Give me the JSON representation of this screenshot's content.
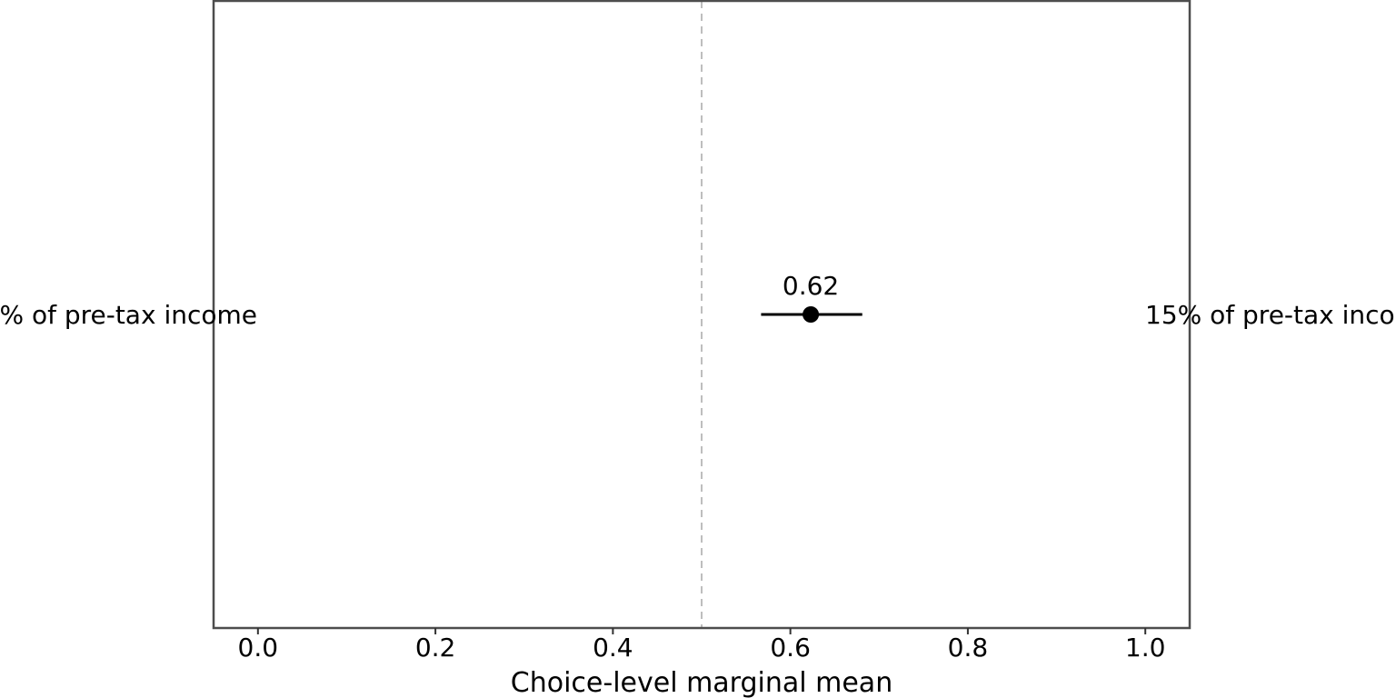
{
  "chart_data": {
    "type": "scatter",
    "xlabel": "Choice-level marginal mean",
    "ylabel": "",
    "xlim": [
      -0.05,
      1.05
    ],
    "xticks": [
      0.0,
      0.2,
      0.4,
      0.6,
      0.8,
      1.0
    ],
    "xtick_labels": [
      "0.0",
      "0.2",
      "0.4",
      "0.6",
      "0.8",
      "1.0"
    ],
    "reference_line": 0.5,
    "left_label": "% of pre-tax income",
    "right_label": "15% of pre-tax inco",
    "points": [
      {
        "estimate": 0.623,
        "lower": 0.567,
        "upper": 0.681,
        "label": "0.62"
      }
    ],
    "grid": false,
    "colors": {
      "point": "#000000",
      "errorbar": "#000000",
      "panel_border": "#4d4d4d",
      "reference_line": "#bebebe"
    }
  }
}
